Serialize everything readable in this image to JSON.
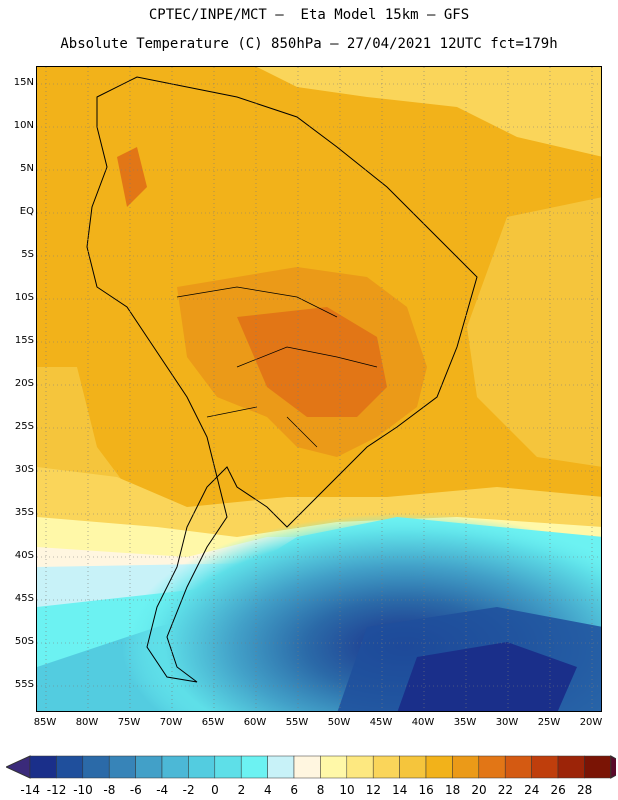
{
  "header": {
    "line1": "CPTEC/INPE/MCT –  Eta Model 15km – GFS",
    "line2": "Absolute Temperature (C) 850hPa – 27/04/2021 12UTC fct=179h"
  },
  "map": {
    "lat_labels": [
      "15N",
      "10N",
      "5N",
      "EQ",
      "5S",
      "10S",
      "15S",
      "20S",
      "25S",
      "30S",
      "35S",
      "40S",
      "45S",
      "50S",
      "55S"
    ],
    "lon_labels": [
      "85W",
      "80W",
      "75W",
      "70W",
      "65W",
      "60W",
      "55W",
      "50W",
      "45W",
      "40W",
      "35W",
      "30W",
      "25W",
      "20W"
    ]
  },
  "colorbar": {
    "labels": [
      "-14",
      "-12",
      "-10",
      "-8",
      "-6",
      "-4",
      "-2",
      "0",
      "2",
      "4",
      "6",
      "8",
      "10",
      "12",
      "14",
      "16",
      "18",
      "20",
      "22",
      "24",
      "26",
      "28"
    ],
    "colors": [
      "#1a2f8a",
      "#1f4f9c",
      "#2b6aa8",
      "#3784b8",
      "#42a0c8",
      "#4cb8d6",
      "#53cce0",
      "#5edfe8",
      "#6cf2f2",
      "#c8f2f8",
      "#fff6e0",
      "#fff8a8",
      "#fde880",
      "#fad55a",
      "#f5c53c",
      "#f2b21a",
      "#eb9a18",
      "#e27616",
      "#d45a12",
      "#bf3e0c",
      "#9c2408",
      "#7a1405"
    ]
  }
}
